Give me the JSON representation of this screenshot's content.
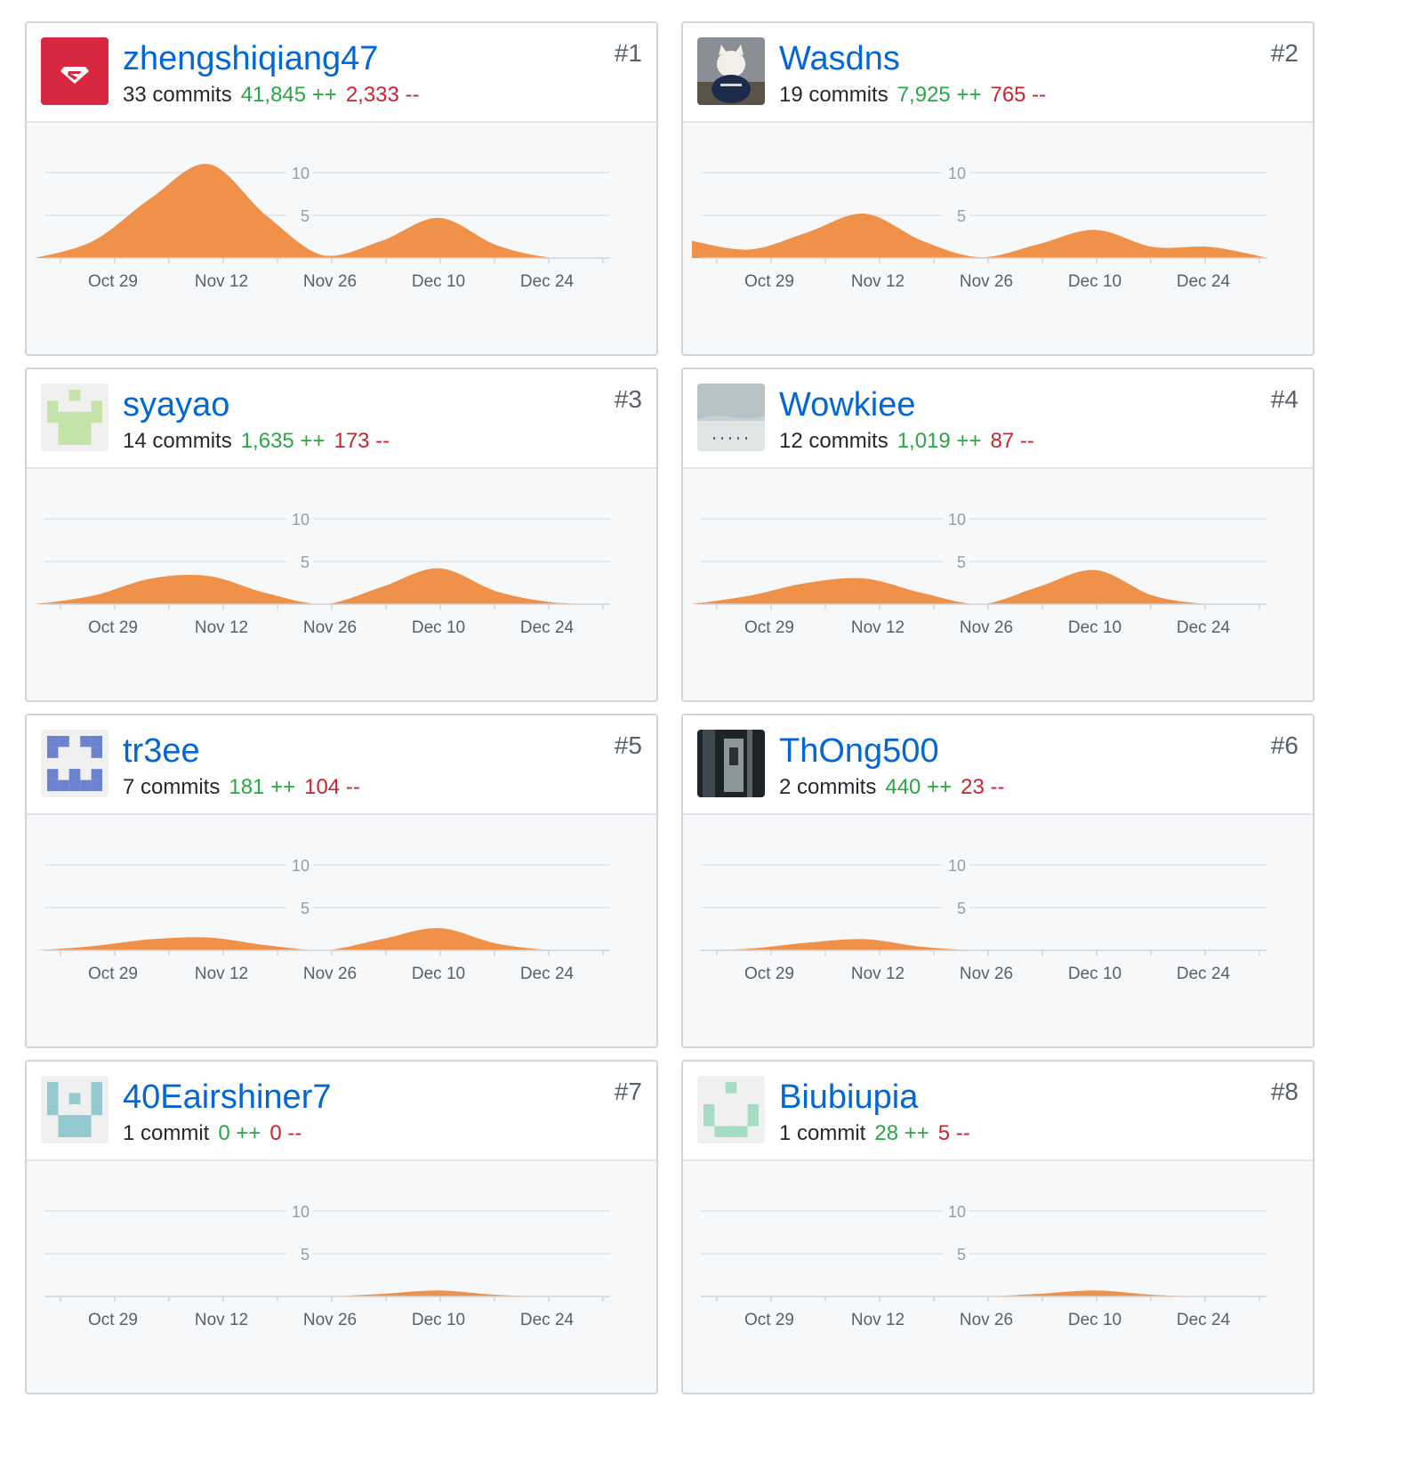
{
  "colors": {
    "username": "#0366d6",
    "additions": "#28a745",
    "deletions": "#cb2431",
    "area": "#f0914a",
    "grid": "#e1e4e8",
    "axis_text": "#586069"
  },
  "contributors": [
    {
      "rank": "#1",
      "username": "zhengshiqiang47",
      "commits": "33 commits",
      "additions": "41,845 ++",
      "deletions": "2,333 --",
      "avatar": "superman-logo-avatar"
    },
    {
      "rank": "#2",
      "username": "Wasdns",
      "commits": "19 commits",
      "additions": "7,925 ++",
      "deletions": "765 --",
      "avatar": "cat-photo-avatar"
    },
    {
      "rank": "#3",
      "username": "syayao",
      "commits": "14 commits",
      "additions": "1,635 ++",
      "deletions": "173 --",
      "avatar": "green-identicon-avatar"
    },
    {
      "rank": "#4",
      "username": "Wowkiee",
      "commits": "12 commits",
      "additions": "1,019 ++",
      "deletions": "87 --",
      "avatar": "snow-landscape-avatar"
    },
    {
      "rank": "#5",
      "username": "tr3ee",
      "commits": "7 commits",
      "additions": "181 ++",
      "deletions": "104 --",
      "avatar": "blue-identicon-avatar"
    },
    {
      "rank": "#6",
      "username": "ThOng500",
      "commits": "2 commits",
      "additions": "440 ++",
      "deletions": "23 --",
      "avatar": "dark-photo-avatar"
    },
    {
      "rank": "#7",
      "username": "40Eairshiner7",
      "commits": "1 commit",
      "additions": "0 ++",
      "deletions": "0 --",
      "avatar": "teal-identicon-avatar"
    },
    {
      "rank": "#8",
      "username": "Biubiupia",
      "commits": "1 commit",
      "additions": "28 ++",
      "deletions": "5 --",
      "avatar": "mint-identicon-avatar"
    }
  ],
  "chart_data": [
    {
      "type": "area",
      "x": [
        "Oct 22",
        "Oct 29",
        "Nov 5",
        "Nov 12",
        "Nov 19",
        "Nov 26",
        "Dec 3",
        "Dec 10",
        "Dec 17",
        "Dec 24",
        "Dec 31"
      ],
      "xticks": [
        "Oct 29",
        "Nov 12",
        "Nov 26",
        "Dec 10",
        "Dec 24"
      ],
      "yticks": [
        "5",
        "10"
      ],
      "ylim": [
        0,
        11
      ],
      "series": [
        {
          "values": [
            0,
            2,
            7,
            11,
            5,
            0.3,
            2,
            4.7,
            1.5,
            0,
            0
          ]
        }
      ]
    },
    {
      "type": "area",
      "x": [
        "Oct 22",
        "Oct 29",
        "Nov 5",
        "Nov 12",
        "Nov 19",
        "Nov 26",
        "Dec 3",
        "Dec 10",
        "Dec 17",
        "Dec 24",
        "Dec 31"
      ],
      "xticks": [
        "Oct 29",
        "Nov 12",
        "Nov 26",
        "Dec 10",
        "Dec 24"
      ],
      "yticks": [
        "5",
        "10"
      ],
      "ylim": [
        0,
        11
      ],
      "series": [
        {
          "values": [
            2,
            1,
            3,
            5.2,
            2,
            0.1,
            1.6,
            3.3,
            1.3,
            1.3,
            0
          ]
        }
      ]
    },
    {
      "type": "area",
      "x": [
        "Oct 22",
        "Oct 29",
        "Nov 5",
        "Nov 12",
        "Nov 19",
        "Nov 26",
        "Dec 3",
        "Dec 10",
        "Dec 17",
        "Dec 24",
        "Dec 31"
      ],
      "xticks": [
        "Oct 29",
        "Nov 12",
        "Nov 26",
        "Dec 10",
        "Dec 24"
      ],
      "yticks": [
        "5",
        "10"
      ],
      "ylim": [
        0,
        11
      ],
      "series": [
        {
          "values": [
            0,
            1,
            3,
            3.3,
            1.3,
            0,
            2,
            4.2,
            1.5,
            0.2,
            0
          ]
        }
      ]
    },
    {
      "type": "area",
      "x": [
        "Oct 22",
        "Oct 29",
        "Nov 5",
        "Nov 12",
        "Nov 19",
        "Nov 26",
        "Dec 3",
        "Dec 10",
        "Dec 17",
        "Dec 24",
        "Dec 31"
      ],
      "xticks": [
        "Oct 29",
        "Nov 12",
        "Nov 26",
        "Dec 10",
        "Dec 24"
      ],
      "yticks": [
        "5",
        "10"
      ],
      "ylim": [
        0,
        11
      ],
      "series": [
        {
          "values": [
            0,
            1,
            2.5,
            3,
            1.3,
            0,
            2,
            4,
            1,
            0,
            0
          ]
        }
      ]
    },
    {
      "type": "area",
      "x": [
        "Oct 22",
        "Oct 29",
        "Nov 5",
        "Nov 12",
        "Nov 19",
        "Nov 26",
        "Dec 3",
        "Dec 10",
        "Dec 17",
        "Dec 24",
        "Dec 31"
      ],
      "xticks": [
        "Oct 29",
        "Nov 12",
        "Nov 26",
        "Dec 10",
        "Dec 24"
      ],
      "yticks": [
        "5",
        "10"
      ],
      "ylim": [
        0,
        11
      ],
      "series": [
        {
          "values": [
            0,
            0.5,
            1.3,
            1.5,
            0.6,
            0,
            1.3,
            2.6,
            0.8,
            0,
            0
          ]
        }
      ]
    },
    {
      "type": "area",
      "x": [
        "Oct 22",
        "Oct 29",
        "Nov 5",
        "Nov 12",
        "Nov 19",
        "Nov 26",
        "Dec 3",
        "Dec 10",
        "Dec 17",
        "Dec 24",
        "Dec 31"
      ],
      "xticks": [
        "Oct 29",
        "Nov 12",
        "Nov 26",
        "Dec 10",
        "Dec 24"
      ],
      "yticks": [
        "5",
        "10"
      ],
      "ylim": [
        0,
        11
      ],
      "series": [
        {
          "values": [
            0,
            0.2,
            0.9,
            1.3,
            0.4,
            0,
            0,
            0,
            0,
            0,
            0
          ]
        }
      ]
    },
    {
      "type": "area",
      "x": [
        "Oct 22",
        "Oct 29",
        "Nov 5",
        "Nov 12",
        "Nov 19",
        "Nov 26",
        "Dec 3",
        "Dec 10",
        "Dec 17",
        "Dec 24",
        "Dec 31"
      ],
      "xticks": [
        "Oct 29",
        "Nov 12",
        "Nov 26",
        "Dec 10",
        "Dec 24"
      ],
      "yticks": [
        "5",
        "10"
      ],
      "ylim": [
        0,
        11
      ],
      "series": [
        {
          "values": [
            0,
            0,
            0,
            0,
            0,
            0,
            0.3,
            0.7,
            0.2,
            0,
            0
          ]
        }
      ]
    },
    {
      "type": "area",
      "x": [
        "Oct 22",
        "Oct 29",
        "Nov 5",
        "Nov 12",
        "Nov 19",
        "Nov 26",
        "Dec 3",
        "Dec 10",
        "Dec 17",
        "Dec 24",
        "Dec 31"
      ],
      "xticks": [
        "Oct 29",
        "Nov 12",
        "Nov 26",
        "Dec 10",
        "Dec 24"
      ],
      "yticks": [
        "5",
        "10"
      ],
      "ylim": [
        0,
        11
      ],
      "series": [
        {
          "values": [
            0,
            0,
            0,
            0,
            0,
            0,
            0.3,
            0.7,
            0.2,
            0,
            0
          ]
        }
      ]
    }
  ]
}
